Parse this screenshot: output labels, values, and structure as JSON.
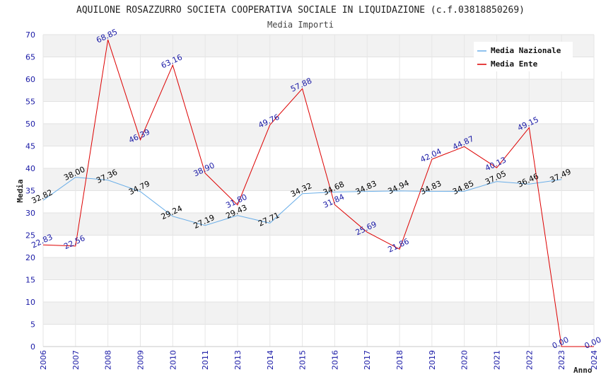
{
  "chart_data": {
    "type": "line",
    "title": "AQUILONE ROSAZZURRO SOCIETA COOPERATIVA SOCIALE IN LIQUIDAZIONE (c.f.03818850269)",
    "subtitle": "Media Importi",
    "xlabel": "Anno",
    "ylabel": "Media",
    "ylim": [
      0,
      70
    ],
    "yticks": [
      0,
      5,
      10,
      15,
      20,
      25,
      30,
      35,
      40,
      45,
      50,
      55,
      60,
      65,
      70
    ],
    "categories": [
      "2006",
      "2007",
      "2008",
      "2009",
      "2010",
      "2011",
      "2013",
      "2014",
      "2015",
      "2016",
      "2017",
      "2018",
      "2019",
      "2020",
      "2021",
      "2022",
      "2023",
      "2024"
    ],
    "legend_position": "top-right",
    "series": [
      {
        "name": "Media Nazionale",
        "color": "#6aaee8",
        "values": [
          32.82,
          38.0,
          37.36,
          34.79,
          29.24,
          27.19,
          29.43,
          27.71,
          34.32,
          34.68,
          34.83,
          34.94,
          34.83,
          34.85,
          37.05,
          36.46,
          37.49,
          null
        ],
        "labels": [
          "32.82",
          "38.00",
          "37.36",
          "34.79",
          "29.24",
          "27.19",
          "29.43",
          "27.71",
          "34.32",
          "34.68",
          "34.83",
          "34.94",
          "34.83",
          "34.85",
          "37.05",
          "36.46",
          "37.49",
          null
        ]
      },
      {
        "name": "Media Ente",
        "color": "#dd0000",
        "values": [
          22.83,
          22.56,
          68.85,
          46.39,
          63.16,
          38.9,
          31.8,
          49.76,
          57.88,
          31.84,
          25.69,
          21.86,
          42.04,
          44.87,
          40.13,
          49.15,
          0.0,
          0.0
        ],
        "labels": [
          "22.83",
          "22.56",
          "68.85",
          "46.39",
          "63.16",
          "38.90",
          "31.80",
          "49.76",
          "57.88",
          "31.84",
          "25.69",
          "21.86",
          "42.04",
          "44.87",
          "40.13",
          "49.15",
          "0.00",
          "0.00"
        ]
      }
    ]
  }
}
